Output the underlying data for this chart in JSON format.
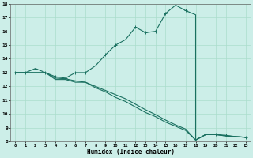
{
  "xlabel": "Humidex (Indice chaleur)",
  "bg_color": "#cceee8",
  "line_color": "#1a7060",
  "grid_color": "#aaddcc",
  "xlim": [
    -0.5,
    23.5
  ],
  "ylim": [
    8,
    18
  ],
  "xticks": [
    0,
    1,
    2,
    3,
    4,
    5,
    6,
    7,
    8,
    9,
    10,
    11,
    12,
    13,
    14,
    15,
    16,
    17,
    18,
    19,
    20,
    21,
    22,
    23
  ],
  "yticks": [
    8,
    9,
    10,
    11,
    12,
    13,
    14,
    15,
    16,
    17,
    18
  ],
  "curve1_x": [
    0,
    1,
    2,
    3,
    4,
    5,
    6,
    7,
    8,
    9,
    10,
    11,
    12,
    13,
    14,
    15,
    16,
    17,
    18,
    18,
    19,
    20,
    21,
    22,
    23
  ],
  "curve1_y": [
    13,
    13,
    13.3,
    13,
    12.7,
    12.6,
    13.0,
    13.0,
    13.5,
    14.3,
    15.0,
    15.4,
    16.3,
    15.9,
    16.0,
    17.3,
    17.9,
    17.5,
    17.2,
    8.1,
    8.5,
    8.5,
    8.45,
    8.35,
    8.3
  ],
  "curve1_markers_x": [
    0,
    1,
    2,
    3,
    4,
    5,
    6,
    7,
    8,
    9,
    10,
    11,
    12,
    13,
    14,
    15,
    16,
    17,
    19,
    20,
    21,
    22,
    23
  ],
  "curve1_markers_y": [
    13,
    13,
    13.3,
    13,
    12.7,
    12.6,
    13.0,
    13.0,
    13.5,
    14.3,
    15.0,
    15.4,
    16.3,
    15.9,
    16.0,
    17.3,
    17.9,
    17.5,
    8.5,
    8.5,
    8.45,
    8.35,
    8.3
  ],
  "curve2_x": [
    0,
    1,
    2,
    3,
    4,
    5,
    6,
    7,
    8,
    9,
    10,
    11,
    12,
    13,
    14,
    15,
    16,
    17,
    18,
    19,
    20,
    21,
    22,
    23
  ],
  "curve2_y": [
    13,
    13,
    13,
    13,
    12.5,
    12.5,
    12.3,
    12.3,
    11.9,
    11.6,
    11.2,
    10.9,
    10.5,
    10.1,
    9.8,
    9.4,
    9.1,
    8.8,
    8.1,
    8.5,
    8.5,
    8.4,
    8.35,
    8.3
  ],
  "curve3_x": [
    0,
    1,
    2,
    3,
    4,
    5,
    6,
    7,
    8,
    9,
    10,
    11,
    12,
    13,
    14,
    15,
    16,
    17,
    18,
    19,
    20,
    21,
    22,
    23
  ],
  "curve3_y": [
    13,
    13,
    13,
    13,
    12.6,
    12.55,
    12.4,
    12.3,
    12.0,
    11.7,
    11.4,
    11.1,
    10.7,
    10.3,
    9.95,
    9.55,
    9.2,
    8.9,
    8.1,
    8.5,
    8.5,
    8.4,
    8.35,
    8.3
  ]
}
